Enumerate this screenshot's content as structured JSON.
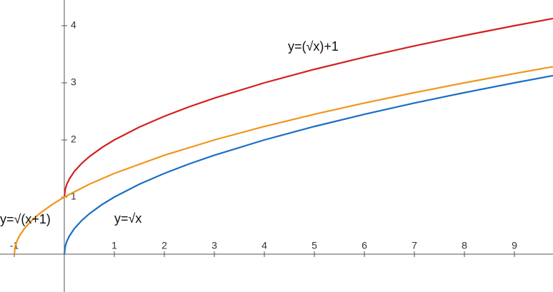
{
  "chart_data": {
    "type": "line",
    "xlim": [
      -1.286,
      9.771
    ],
    "ylim": [
      -0.6625,
      4.45
    ],
    "xticks": [
      -1,
      1,
      2,
      3,
      4,
      5,
      6,
      7,
      8,
      9
    ],
    "yticks": [
      1,
      2,
      3,
      4
    ],
    "series": [
      {
        "name": "y=√x",
        "color": "#1a6fc4",
        "x": [
          0,
          0.02,
          0.05,
          0.1,
          0.2,
          0.35,
          0.5,
          0.75,
          1,
          1.5,
          2,
          2.5,
          3,
          4,
          5,
          6,
          7,
          8,
          9,
          9.77
        ],
        "values": [
          0,
          0.141,
          0.224,
          0.316,
          0.447,
          0.592,
          0.707,
          0.866,
          1,
          1.225,
          1.414,
          1.581,
          1.732,
          2,
          2.236,
          2.449,
          2.646,
          2.828,
          3,
          3.126
        ]
      },
      {
        "name": "y=(√x)+1",
        "color": "#d42020",
        "x": [
          0,
          0.02,
          0.05,
          0.1,
          0.2,
          0.35,
          0.5,
          0.75,
          1,
          1.5,
          2,
          2.5,
          3,
          4,
          5,
          6,
          7,
          8,
          9,
          9.77
        ],
        "values": [
          1,
          1.141,
          1.224,
          1.316,
          1.447,
          1.592,
          1.707,
          1.866,
          2,
          2.225,
          2.414,
          2.581,
          2.732,
          3,
          3.236,
          3.449,
          3.646,
          3.828,
          4,
          4.126
        ]
      },
      {
        "name": "y=√(x+1)",
        "color": "#f0961e",
        "x": [
          -1,
          -0.98,
          -0.95,
          -0.9,
          -0.8,
          -0.65,
          -0.5,
          -0.25,
          0,
          0.5,
          1,
          2,
          3,
          4,
          5,
          6,
          7,
          8,
          9,
          9.77
        ],
        "values": [
          0,
          0.141,
          0.224,
          0.316,
          0.447,
          0.592,
          0.707,
          0.866,
          1,
          1.225,
          1.414,
          1.732,
          2,
          2.236,
          2.449,
          2.646,
          2.828,
          3,
          3.162,
          3.282
        ]
      }
    ]
  }
}
